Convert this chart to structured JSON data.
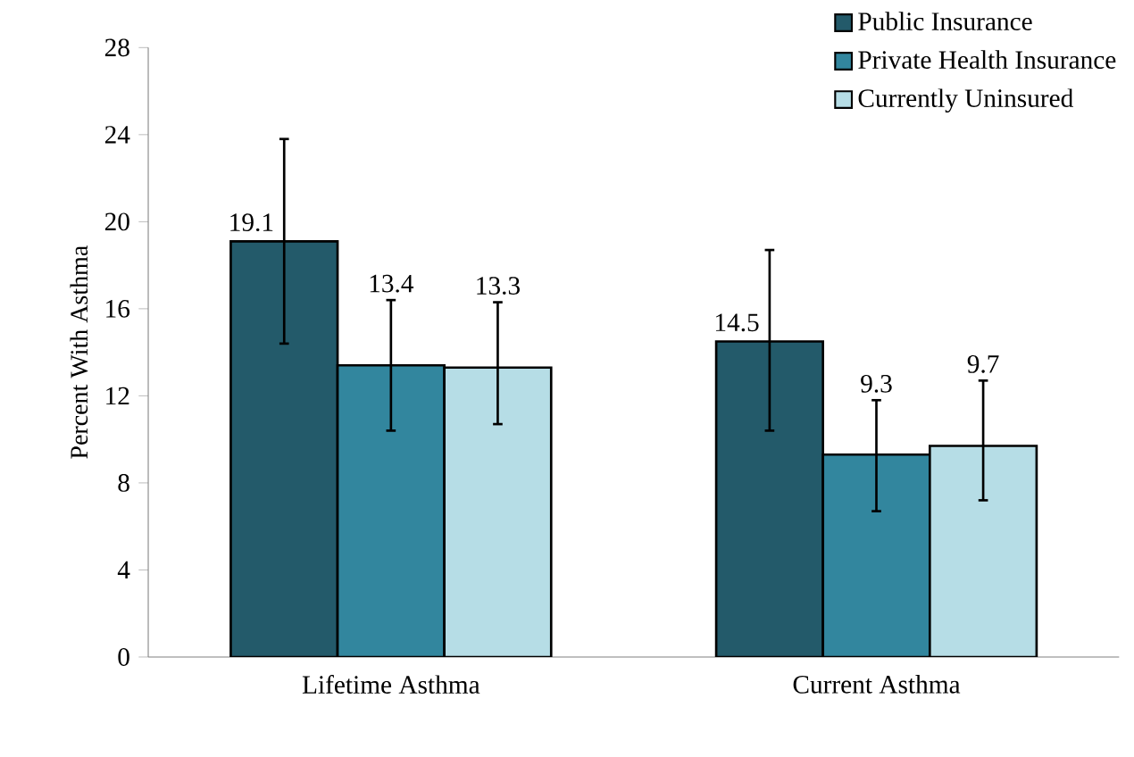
{
  "chart_data": {
    "type": "bar",
    "ylabel": "Percent With Asthma",
    "categories": [
      "Lifetime Asthma",
      "Current Asthma"
    ],
    "series": [
      {
        "name": "Public Insurance",
        "color": "#235a6a",
        "values": [
          19.1,
          14.5
        ],
        "errors": [
          [
            14.4,
            23.8
          ],
          [
            10.4,
            18.7
          ]
        ]
      },
      {
        "name": "Private Health Insurance",
        "color": "#32869e",
        "values": [
          13.4,
          9.3
        ],
        "errors": [
          [
            10.4,
            16.4
          ],
          [
            6.7,
            11.8
          ]
        ]
      },
      {
        "name": "Currently Uninsured",
        "color": "#b6dde6",
        "values": [
          13.3,
          9.7
        ],
        "errors": [
          [
            10.7,
            16.3
          ],
          [
            7.2,
            12.7
          ]
        ]
      }
    ],
    "ylim": [
      0,
      28
    ],
    "yticks": [
      0,
      4,
      8,
      12,
      16,
      20,
      24,
      28
    ],
    "data_labels": true,
    "legend": "top right",
    "grid": false
  }
}
